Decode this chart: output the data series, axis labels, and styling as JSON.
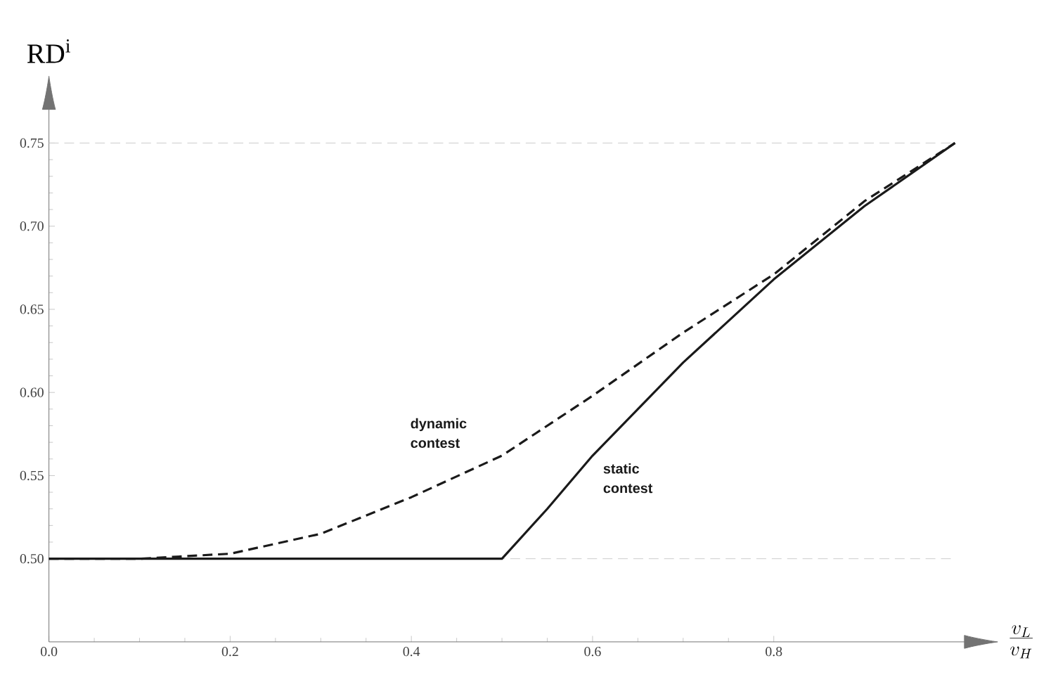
{
  "chart_data": {
    "type": "line",
    "xlabel": "\\frac{v_L}{v_H}",
    "ylabel": "RD$^{i}$",
    "xlim": [
      0,
      1.01
    ],
    "ylim": [
      0.45,
      0.77
    ],
    "xticks": [
      {
        "value": 0,
        "label": "0.0"
      },
      0.2,
      0.4,
      0.6,
      0.8
    ],
    "yticks": [
      {
        "value": 0.5,
        "label": "0.50"
      },
      {
        "value": 0.55,
        "label": "0.55"
      },
      {
        "value": 0.6,
        "label": "0.60"
      },
      {
        "value": 0.65,
        "label": "0.65"
      },
      {
        "value": 0.7,
        "label": "0.70"
      },
      {
        "value": 0.75,
        "label": "0.75"
      }
    ],
    "ref_lines": [
      {
        "axis": "y",
        "value": 0.5,
        "color": "#cccccc",
        "line_style": "dashed"
      },
      {
        "axis": "y",
        "value": 0.75,
        "color": "#cccccc",
        "line_style": "dashed"
      }
    ],
    "series": [
      {
        "name": "dynamic contest",
        "color": "#1a1a1a",
        "line_style": "dashed",
        "x": [
          0,
          0.1,
          0.2,
          0.3,
          0.4,
          0.5,
          0.6,
          0.7,
          0.8,
          0.9,
          1.0
        ],
        "values": [
          0.5,
          0.5,
          0.503,
          0.515,
          0.537,
          0.562,
          0.598,
          0.636,
          0.671,
          0.715,
          0.75
        ]
      },
      {
        "name": "static contest",
        "color": "#1a1a1a",
        "line_style": "solid",
        "x": [
          0,
          0.5,
          0.55,
          0.6,
          0.7,
          0.8,
          0.9,
          1.0
        ],
        "values": [
          0.5,
          0.5,
          0.53,
          0.562,
          0.618,
          0.668,
          0.712,
          0.75
        ]
      }
    ]
  }
}
